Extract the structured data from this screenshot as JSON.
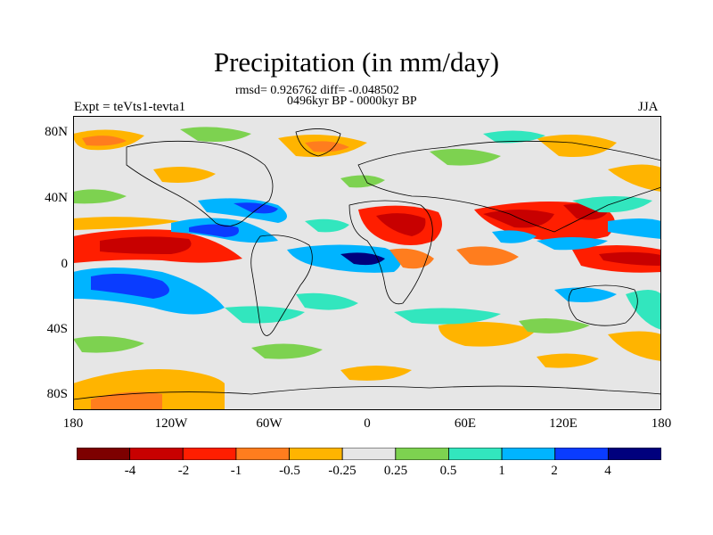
{
  "plot": {
    "title": "Precipitation (in mm/day)",
    "stats": "rmsd= 0.926762 diff= -0.048502",
    "period": "0496kyr BP - 0000kyr BP",
    "experiment": "Expt = teVts1-tevta1",
    "season": "JJA"
  },
  "axes": {
    "lat_labels": [
      "80N",
      "40N",
      "0",
      "40S",
      "80S"
    ],
    "lon_labels": [
      "180",
      "120W",
      "60W",
      "0",
      "60E",
      "120E",
      "180"
    ]
  },
  "colorbar": {
    "labels": [
      "-4",
      "-2",
      "-1",
      "-0.5",
      "-0.25",
      "0.25",
      "0.5",
      "1",
      "2",
      "4"
    ],
    "colors": [
      "#7d0000",
      "#c80000",
      "#ff1e00",
      "#ff7d1e",
      "#ffb400",
      "#e6e6e6",
      "#7dd250",
      "#32e6be",
      "#00b4ff",
      "#0a3cff",
      "#00007d"
    ]
  },
  "map_data": {
    "variable": "precipitation difference",
    "units": "mm/day",
    "background_color": "#e6e6e6"
  }
}
